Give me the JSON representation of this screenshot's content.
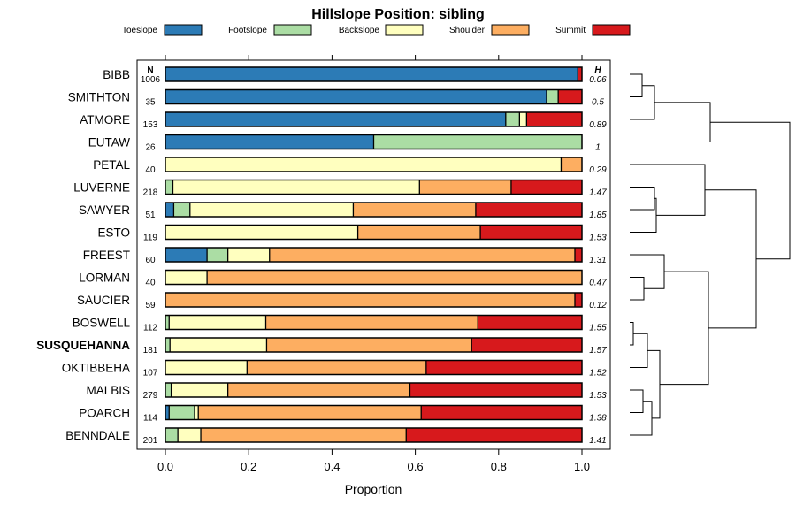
{
  "chart_data": {
    "type": "bar",
    "stacked": true,
    "orientation": "horizontal",
    "title": "Hillslope Position: sibling",
    "xlabel": "Proportion",
    "xlim": [
      0,
      1
    ],
    "xticks": [
      "0.0",
      "0.2",
      "0.4",
      "0.6",
      "0.8",
      "1.0"
    ],
    "legend_position": "top",
    "n_header": "N",
    "h_header": "H",
    "series": [
      {
        "name": "Toeslope",
        "color": "#2C7BB6"
      },
      {
        "name": "Footslope",
        "color": "#ABDDA4"
      },
      {
        "name": "Backslope",
        "color": "#FFFFBF"
      },
      {
        "name": "Shoulder",
        "color": "#FDAE61"
      },
      {
        "name": "Summit",
        "color": "#D7191C"
      }
    ],
    "rows": [
      {
        "label": "BIBB",
        "n": "1006",
        "h": "0.06",
        "bold": false,
        "values": [
          0.99,
          0.0,
          0.0,
          0.0,
          0.01
        ]
      },
      {
        "label": "SMITHTON",
        "n": "35",
        "h": "0.5",
        "bold": false,
        "values": [
          0.915,
          0.028,
          0.0,
          0.0,
          0.057
        ]
      },
      {
        "label": "ATMORE",
        "n": "153",
        "h": "0.89",
        "bold": false,
        "values": [
          0.817,
          0.033,
          0.017,
          0.0,
          0.133
        ]
      },
      {
        "label": "EUTAW",
        "n": "26",
        "h": "1",
        "bold": false,
        "values": [
          0.5,
          0.5,
          0.0,
          0.0,
          0.0
        ]
      },
      {
        "label": "PETAL",
        "n": "40",
        "h": "0.29",
        "bold": false,
        "values": [
          0.0,
          0.0,
          0.95,
          0.05,
          0.0
        ]
      },
      {
        "label": "LUVERNE",
        "n": "218",
        "h": "1.47",
        "bold": false,
        "values": [
          0.0,
          0.018,
          0.592,
          0.22,
          0.17
        ]
      },
      {
        "label": "SAWYER",
        "n": "51",
        "h": "1.85",
        "bold": false,
        "values": [
          0.02,
          0.039,
          0.392,
          0.294,
          0.255
        ]
      },
      {
        "label": "ESTO",
        "n": "119",
        "h": "1.53",
        "bold": false,
        "values": [
          0.0,
          0.0,
          0.462,
          0.294,
          0.244
        ]
      },
      {
        "label": "FREEST",
        "n": "60",
        "h": "1.31",
        "bold": false,
        "values": [
          0.1,
          0.05,
          0.1,
          0.733,
          0.017
        ]
      },
      {
        "label": "LORMAN",
        "n": "40",
        "h": "0.47",
        "bold": false,
        "values": [
          0.0,
          0.0,
          0.1,
          0.9,
          0.0
        ]
      },
      {
        "label": "SAUCIER",
        "n": "59",
        "h": "0.12",
        "bold": false,
        "values": [
          0.0,
          0.0,
          0.0,
          0.983,
          0.017
        ]
      },
      {
        "label": "BOSWELL",
        "n": "112",
        "h": "1.55",
        "bold": false,
        "values": [
          0.0,
          0.009,
          0.232,
          0.509,
          0.25
        ]
      },
      {
        "label": "SUSQUEHANNA",
        "n": "181",
        "h": "1.57",
        "bold": true,
        "values": [
          0.0,
          0.011,
          0.232,
          0.492,
          0.265
        ]
      },
      {
        "label": "OKTIBBEHA",
        "n": "107",
        "h": "1.52",
        "bold": false,
        "values": [
          0.0,
          0.0,
          0.196,
          0.43,
          0.374
        ]
      },
      {
        "label": "MALBIS",
        "n": "279",
        "h": "1.53",
        "bold": false,
        "values": [
          0.0,
          0.014,
          0.136,
          0.437,
          0.413
        ]
      },
      {
        "label": "POARCH",
        "n": "114",
        "h": "1.38",
        "bold": false,
        "values": [
          0.009,
          0.061,
          0.009,
          0.535,
          0.386
        ]
      },
      {
        "label": "BENNDALE",
        "n": "201",
        "h": "1.41",
        "bold": false,
        "values": [
          0.0,
          0.03,
          0.055,
          0.493,
          0.422
        ]
      }
    ]
  }
}
